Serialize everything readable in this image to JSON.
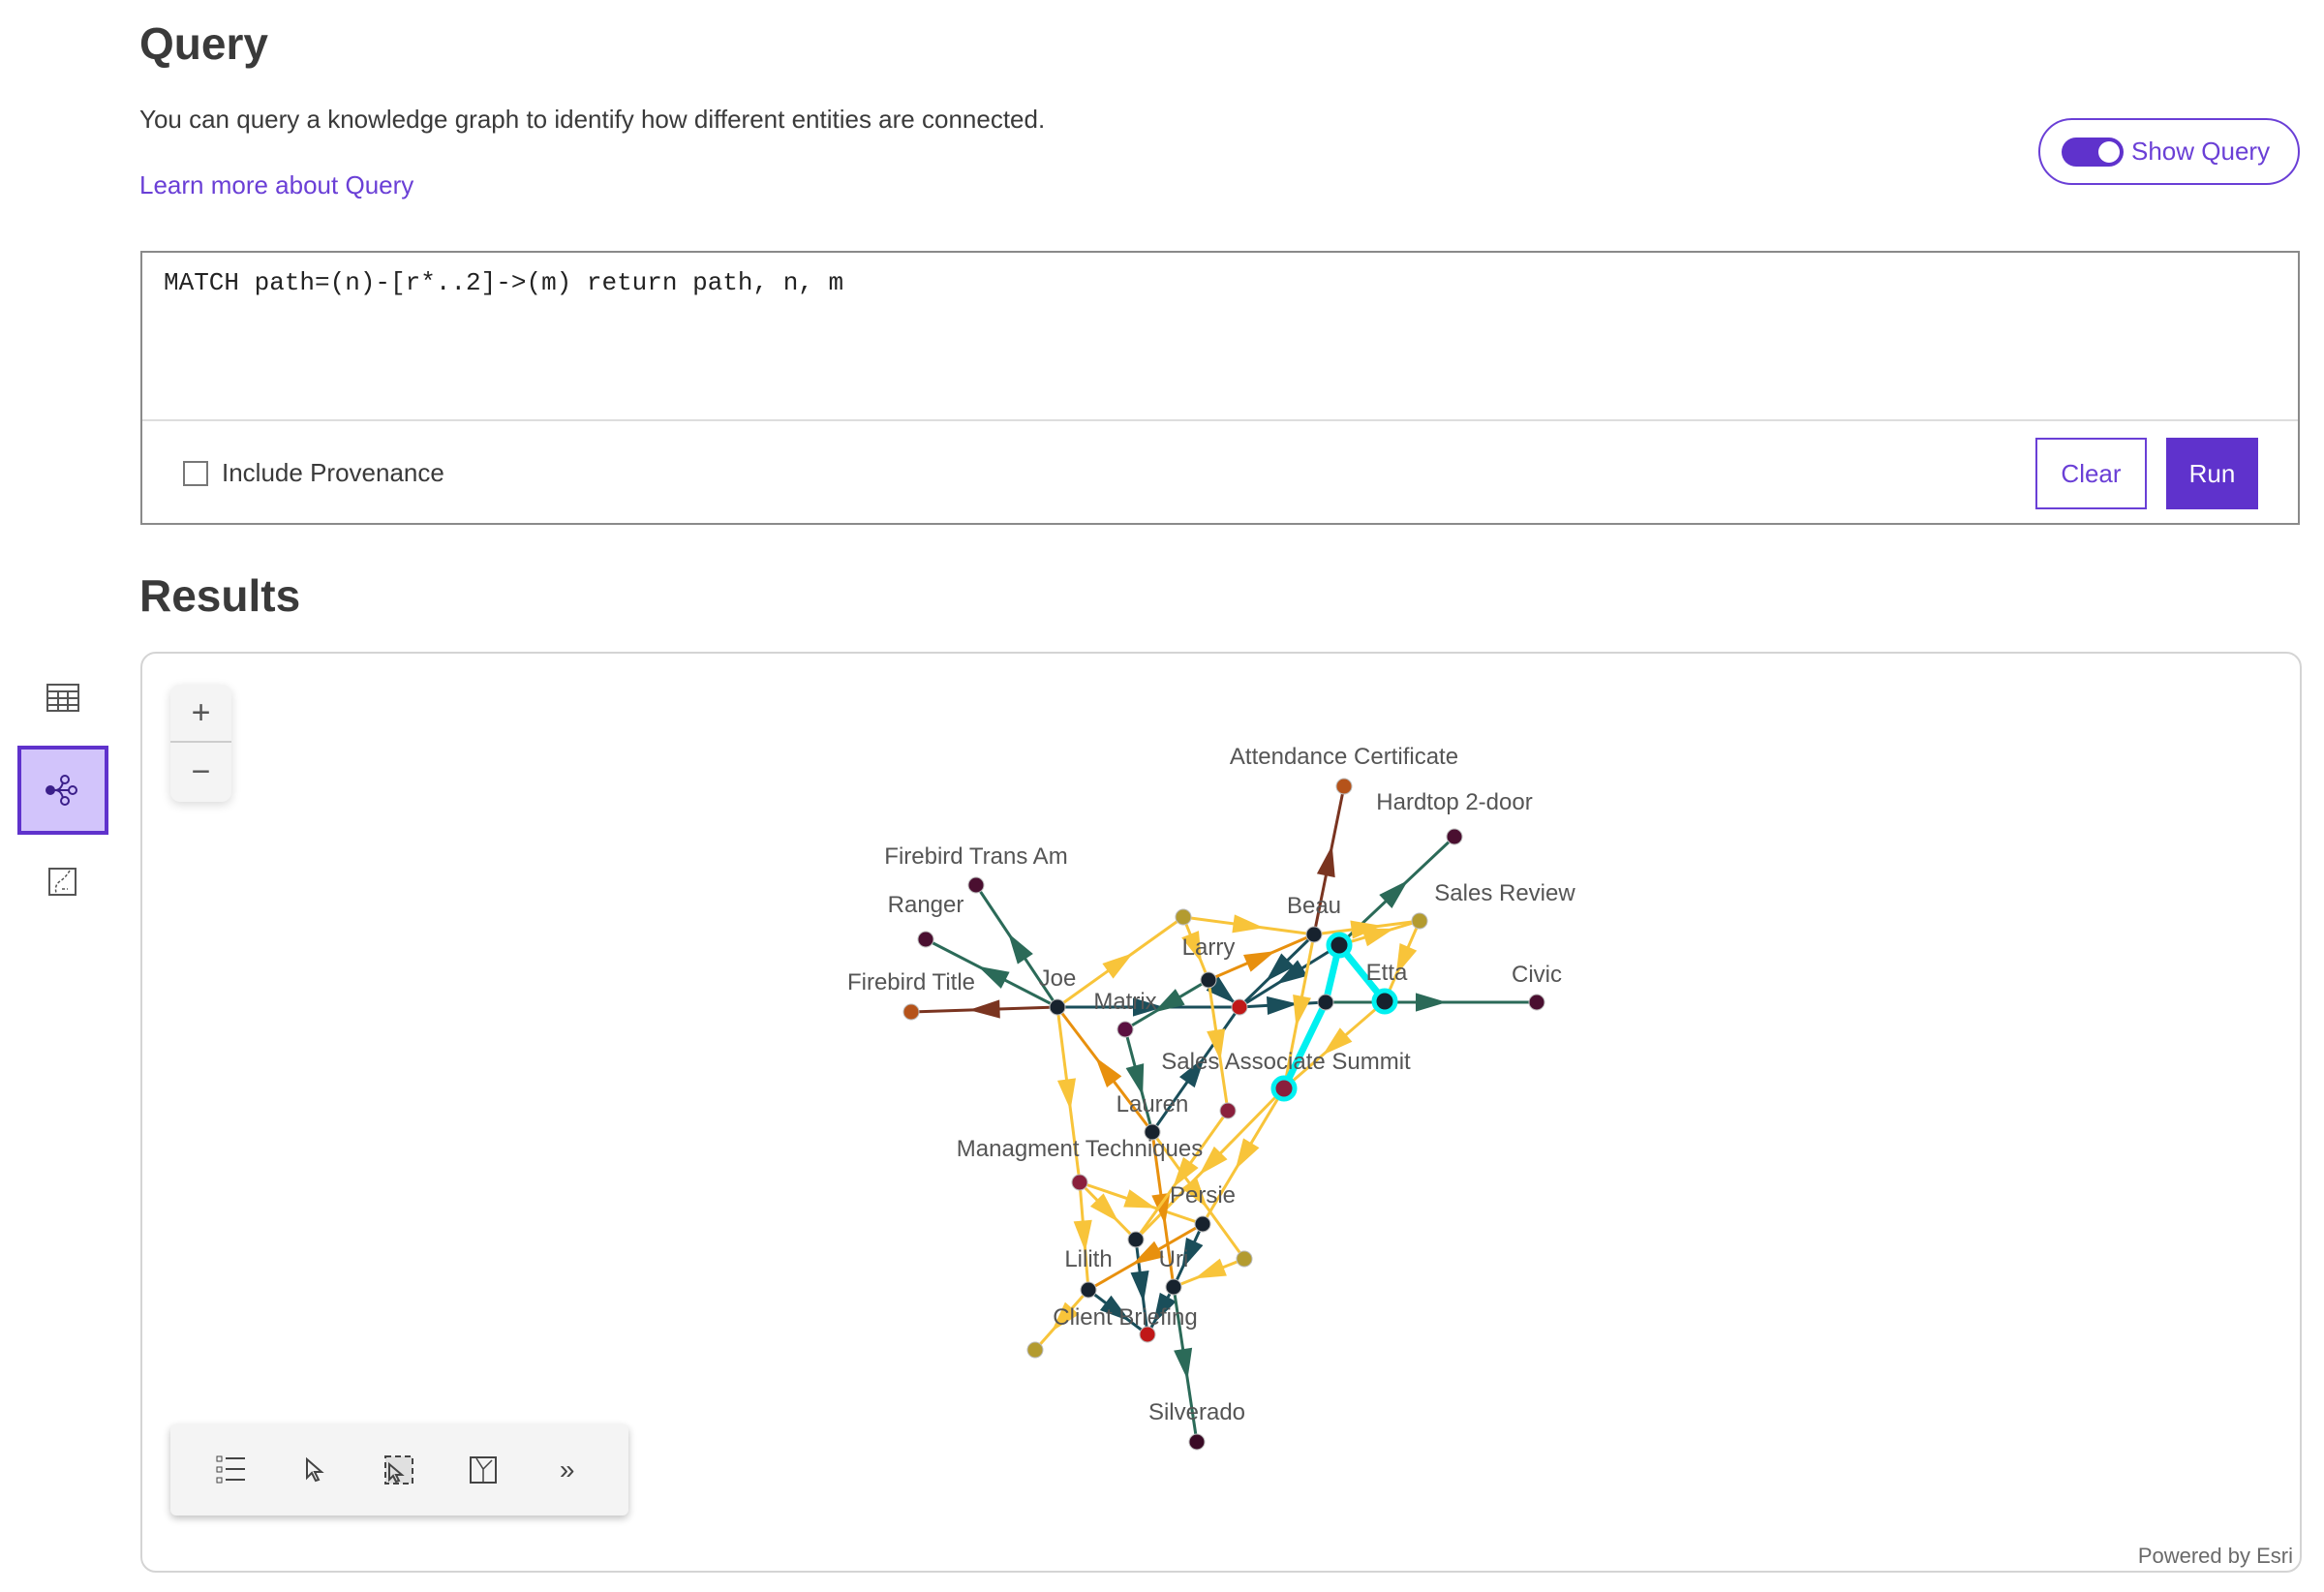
{
  "header": {
    "title": "Query",
    "description": "You can query a knowledge graph to identify how different entities are connected.",
    "learn_more": "Learn more about Query",
    "show_query_label": "Show Query",
    "show_query_on": true
  },
  "query": {
    "text": "MATCH path=(n)-[r*..2]->(m) return path, n, m",
    "include_provenance_label": "Include Provenance",
    "include_provenance": false,
    "clear_label": "Clear",
    "run_label": "Run"
  },
  "results": {
    "title": "Results",
    "view_modes": [
      "table-icon",
      "graph-icon",
      "map-icon"
    ],
    "active_view": "graph",
    "zoom_in": "+",
    "zoom_out": "−",
    "toolbar": [
      "list-icon",
      "select-icon",
      "box-select-icon",
      "map-frame-icon",
      "expand-icon"
    ],
    "expand_label": "»",
    "attribution": "Powered by Esri"
  },
  "colors": {
    "accent": "#5f32cc",
    "highlight": "#00f0f0",
    "edge_green": "#2b6a58",
    "edge_teal": "#1a4e5a",
    "edge_brown": "#7a3420",
    "edge_yellow": "#f8c43a",
    "edge_orange": "#e8900e"
  },
  "graph": {
    "nodes": [
      {
        "id": "att",
        "label": "Attendance Certificate",
        "color": "#b5531a"
      },
      {
        "id": "hard",
        "label": "Hardtop 2-door",
        "color": "#4a0f30"
      },
      {
        "id": "fta",
        "label": "Firebird Trans Am",
        "color": "#4a0f30"
      },
      {
        "id": "ranger",
        "label": "Ranger",
        "color": "#4a0f30"
      },
      {
        "id": "ftitle",
        "label": "Firebird Title",
        "color": "#b5531a"
      },
      {
        "id": "joe",
        "label": "Joe",
        "color": "#17222e"
      },
      {
        "id": "matrix",
        "label": "Matrix",
        "color": "#5a1040"
      },
      {
        "id": "larry",
        "label": "Larry",
        "color": "#17222e"
      },
      {
        "id": "red1",
        "label": "",
        "color": "#c01818"
      },
      {
        "id": "beau",
        "label": "Beau",
        "color": "#17222e"
      },
      {
        "id": "ol1",
        "label": "",
        "color": "#b39b30"
      },
      {
        "id": "sreview",
        "label": "Sales Review",
        "color": "#b39b30"
      },
      {
        "id": "n1",
        "label": "",
        "color": "#17222e"
      },
      {
        "id": "n2",
        "label": "",
        "color": "#17222e"
      },
      {
        "id": "etta",
        "label": "Etta",
        "color": "#17222e"
      },
      {
        "id": "civic",
        "label": "Civic",
        "color": "#4a0f30"
      },
      {
        "id": "summit",
        "label": "Sales Associate Summit",
        "color": "#8a1f3c"
      },
      {
        "id": "mar1",
        "label": "",
        "color": "#8a1f3c"
      },
      {
        "id": "lauren",
        "label": "Lauren",
        "color": "#17222e"
      },
      {
        "id": "mgmt",
        "label": "Managment Techniques",
        "color": "#8a1f3c"
      },
      {
        "id": "persie",
        "label": "Persie",
        "color": "#17222e"
      },
      {
        "id": "ol2",
        "label": "",
        "color": "#b39b30"
      },
      {
        "id": "lilith",
        "label": "Lilith",
        "color": "#17222e"
      },
      {
        "id": "uri",
        "label": "Uri",
        "color": "#17222e"
      },
      {
        "id": "client",
        "label": "Client Briefing",
        "color": "#c01818"
      },
      {
        "id": "cnode",
        "label": "",
        "color": "#17222e"
      },
      {
        "id": "ol3",
        "label": "",
        "color": "#b39b30"
      },
      {
        "id": "silverado",
        "label": "Silverado",
        "color": "#3a0a25"
      }
    ],
    "edges": [
      [
        "joe",
        "fta",
        "green"
      ],
      [
        "joe",
        "ranger",
        "green"
      ],
      [
        "joe",
        "ftitle",
        "brown"
      ],
      [
        "joe",
        "ol1",
        "yellow"
      ],
      [
        "lauren",
        "joe",
        "orange"
      ],
      [
        "joe",
        "mgmt",
        "yellow"
      ],
      [
        "joe",
        "red1",
        "teal"
      ],
      [
        "larry",
        "matrix",
        "green"
      ],
      [
        "larry",
        "red1",
        "teal"
      ],
      [
        "larry",
        "beau",
        "orange"
      ],
      [
        "ol1",
        "beau",
        "yellow"
      ],
      [
        "ol1",
        "larry",
        "yellow"
      ],
      [
        "beau",
        "att",
        "brown"
      ],
      [
        "n1",
        "hard",
        "green"
      ],
      [
        "beau",
        "sreview",
        "yellow"
      ],
      [
        "beau",
        "red1",
        "teal"
      ],
      [
        "n1",
        "red1",
        "teal"
      ],
      [
        "red1",
        "n2",
        "teal"
      ],
      [
        "n2",
        "civic",
        "green"
      ],
      [
        "sreview",
        "etta",
        "yellow"
      ],
      [
        "etta",
        "summit",
        "yellow"
      ],
      [
        "n1",
        "sreview",
        "yellow"
      ],
      [
        "matrix",
        "lauren",
        "green"
      ],
      [
        "lauren",
        "red1",
        "teal"
      ],
      [
        "larry",
        "mar1",
        "yellow"
      ],
      [
        "beau",
        "summit",
        "yellow"
      ],
      [
        "summit",
        "persie",
        "yellow"
      ],
      [
        "summit",
        "lilith",
        "yellow"
      ],
      [
        "mgmt",
        "persie",
        "yellow"
      ],
      [
        "mgmt",
        "lilith",
        "yellow"
      ],
      [
        "mgmt",
        "cnode",
        "yellow"
      ],
      [
        "lauren",
        "uri",
        "orange"
      ],
      [
        "lauren",
        "ol2",
        "yellow"
      ],
      [
        "lilith",
        "client",
        "teal"
      ],
      [
        "uri",
        "client",
        "teal"
      ],
      [
        "cnode",
        "client",
        "teal"
      ],
      [
        "persie",
        "uri",
        "teal"
      ],
      [
        "persie",
        "cnode",
        "orange"
      ],
      [
        "cnode",
        "ol3",
        "yellow"
      ],
      [
        "uri",
        "silverado",
        "green"
      ],
      [
        "ol2",
        "uri",
        "yellow"
      ],
      [
        "mar1",
        "lilith",
        "yellow"
      ]
    ],
    "highlighted_path": [
      "summit",
      "n2",
      "n1",
      "etta"
    ]
  }
}
